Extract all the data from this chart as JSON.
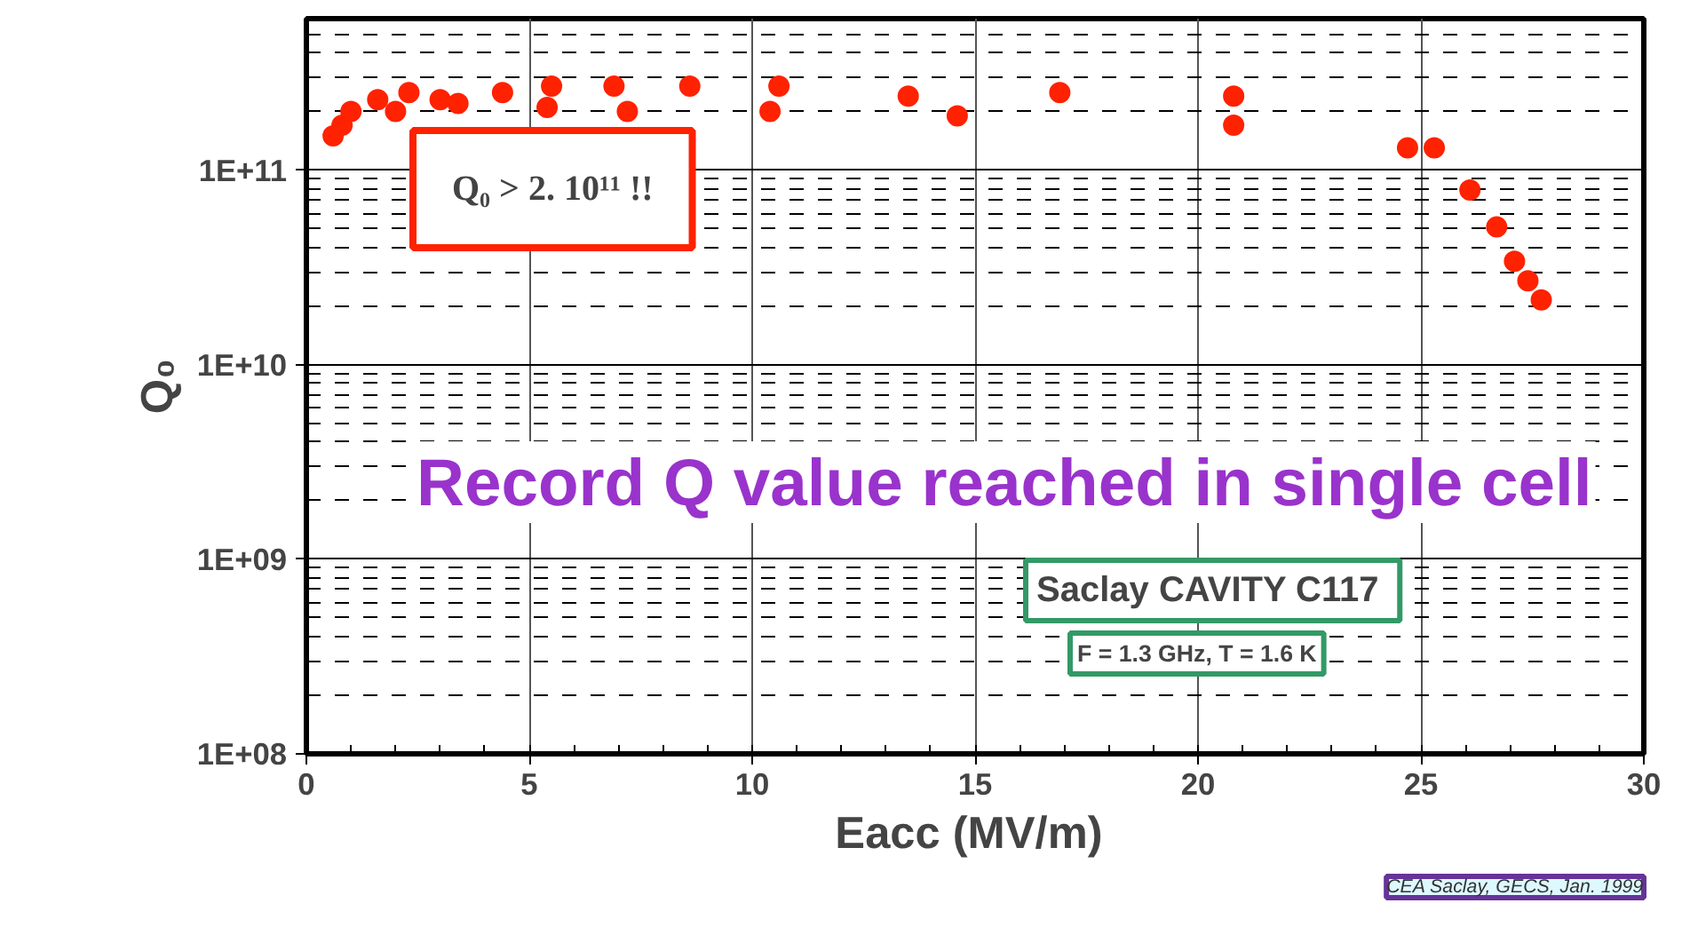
{
  "chart_data": {
    "type": "scatter",
    "xlabel": "Eacc  (MV/m)",
    "ylabel": "Q₀",
    "annotations": [
      "Q₀ > 2. 10¹¹ !!",
      "Record Q value reached in single cell",
      "Saclay CAVITY  C117",
      "F = 1.3 GHz, T = 1.6 K",
      "CEA Saclay, GECS, Jan. 1999"
    ],
    "x": [
      0.6,
      0.8,
      1.0,
      1.6,
      2.0,
      2.3,
      3.0,
      3.4,
      4.4,
      5.4,
      5.5,
      6.9,
      7.2,
      8.6,
      10.4,
      10.6,
      13.5,
      14.6,
      16.9,
      20.8,
      20.8,
      24.7,
      25.3,
      26.1,
      26.7,
      27.1,
      27.4,
      27.7
    ],
    "series": [
      {
        "color": "#ff2200",
        "values": [
          150000000000.0,
          170000000000.0,
          200000000000.0,
          230000000000.0,
          200000000000.0,
          250000000000.0,
          230000000000.0,
          220000000000.0,
          250000000000.0,
          210000000000.0,
          270000000000.0,
          270000000000.0,
          200000000000.0,
          270000000000.0,
          200000000000.0,
          270000000000.0,
          240000000000.0,
          190000000000.0,
          250000000000.0,
          240000000000.0,
          170000000000.0,
          130000000000.0,
          130000000000.0,
          79000000000.0,
          51000000000.0,
          34000000000.0,
          27000000000.0,
          21500000000.0
        ]
      }
    ],
    "log": "y",
    "xlim": [
      0,
      30
    ],
    "ylim": [
      100000000.0,
      600000000000.0
    ],
    "xticks": [
      0,
      5,
      10,
      15,
      20,
      25,
      30
    ],
    "yticks": [
      {
        "value": 100000000.0,
        "label": "1E+08"
      },
      {
        "value": 1000000000.0,
        "label": "1E+09"
      },
      {
        "value": 10000000000.0,
        "label": "1E+10"
      },
      {
        "value": 100000000000.0,
        "label": "1E+11"
      }
    ],
    "grid": true,
    "marker": "circle"
  }
}
